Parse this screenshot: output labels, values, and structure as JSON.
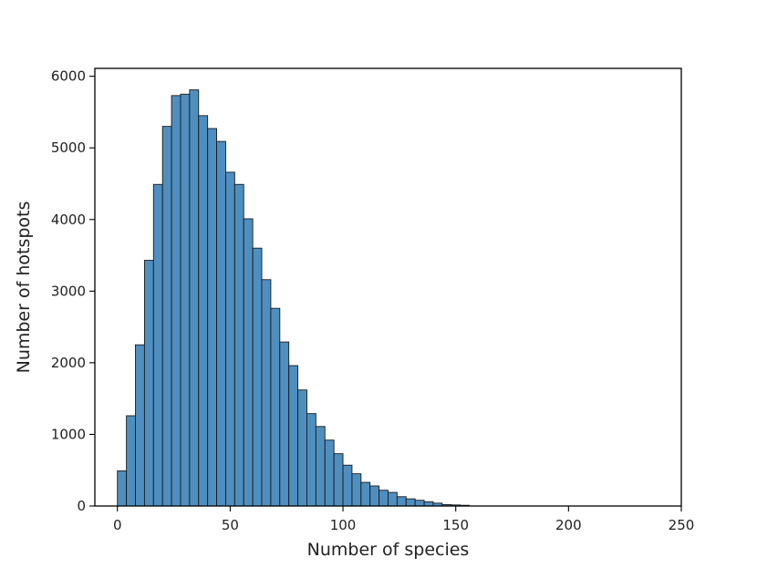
{
  "chart_data": {
    "type": "bar",
    "subtype": "histogram",
    "title": "",
    "xlabel": "Number of species",
    "ylabel": "Number of hotspots",
    "xlim": [
      -10,
      250
    ],
    "ylim": [
      0,
      6000
    ],
    "grid": false,
    "legend": "none",
    "bar_color": "#4f8fc0",
    "edge_color": "#1a1a1a",
    "bin_width": 4,
    "bin_start": 0,
    "x_ticks": [
      {
        "value": 0,
        "label": "0"
      },
      {
        "value": 50,
        "label": "50"
      },
      {
        "value": 100,
        "label": "100"
      },
      {
        "value": 150,
        "label": "150"
      },
      {
        "value": 200,
        "label": "200"
      },
      {
        "value": 250,
        "label": "250"
      }
    ],
    "y_ticks": [
      {
        "value": 0,
        "label": "0"
      },
      {
        "value": 1000,
        "label": "1000"
      },
      {
        "value": 2000,
        "label": "2000"
      },
      {
        "value": 3000,
        "label": "3000"
      },
      {
        "value": 4000,
        "label": "4000"
      },
      {
        "value": 5000,
        "label": "5000"
      },
      {
        "value": 6000,
        "label": "6000"
      }
    ],
    "values": [
      490,
      1260,
      2250,
      3430,
      4490,
      5300,
      5730,
      5750,
      5810,
      5450,
      5270,
      5090,
      4660,
      4490,
      4010,
      3600,
      3160,
      2760,
      2290,
      1960,
      1620,
      1290,
      1110,
      920,
      730,
      570,
      450,
      330,
      280,
      220,
      190,
      130,
      100,
      80,
      60,
      40,
      20,
      15,
      10
    ]
  }
}
